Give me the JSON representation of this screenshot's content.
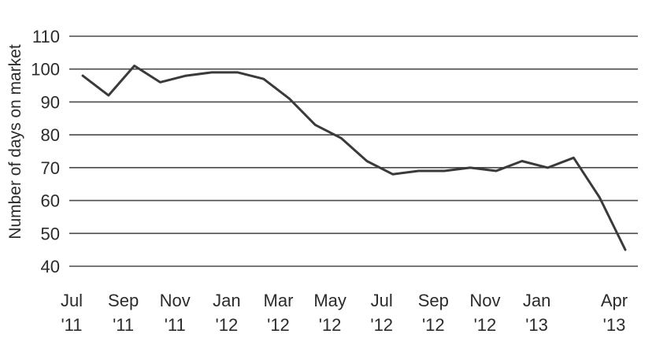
{
  "chart_data": {
    "type": "line",
    "title": "",
    "xlabel": "",
    "ylabel": "Number of days on market",
    "ylim": [
      40,
      110
    ],
    "yticks": [
      40,
      50,
      60,
      70,
      80,
      90,
      100,
      110
    ],
    "grid": "horizontal",
    "x_tick_labels": [
      {
        "line1": "Jul",
        "line2": "'11",
        "month_index": 0
      },
      {
        "line1": "Sep",
        "line2": "'11",
        "month_index": 2
      },
      {
        "line1": "Nov",
        "line2": "'11",
        "month_index": 4
      },
      {
        "line1": "Jan",
        "line2": "'12",
        "month_index": 6
      },
      {
        "line1": "Mar",
        "line2": "'12",
        "month_index": 8
      },
      {
        "line1": "May",
        "line2": "'12",
        "month_index": 10
      },
      {
        "line1": "Jul",
        "line2": "'12",
        "month_index": 12
      },
      {
        "line1": "Sep",
        "line2": "'12",
        "month_index": 14
      },
      {
        "line1": "Nov",
        "line2": "'12",
        "month_index": 16
      },
      {
        "line1": "Jan",
        "line2": "'13",
        "month_index": 18
      },
      {
        "line1": "Apr",
        "line2": "'13",
        "month_index": 21
      }
    ],
    "x": [
      "Jul 2011",
      "Aug 2011",
      "Sep 2011",
      "Oct 2011",
      "Nov 2011",
      "Dec 2011",
      "Jan 2012",
      "Feb 2012",
      "Mar 2012",
      "Apr 2012",
      "May 2012",
      "Jun 2012",
      "Jul 2012",
      "Aug 2012",
      "Sep 2012",
      "Oct 2012",
      "Nov 2012",
      "Dec 2012",
      "Jan 2013",
      "Feb 2013",
      "Mar 2013",
      "Apr 2013"
    ],
    "series": [
      {
        "values": [
          98,
          92,
          101,
          96,
          98,
          99,
          99,
          97,
          91,
          83,
          79,
          72,
          68,
          69,
          69,
          70,
          69,
          72,
          70,
          73,
          61,
          45
        ]
      }
    ]
  }
}
